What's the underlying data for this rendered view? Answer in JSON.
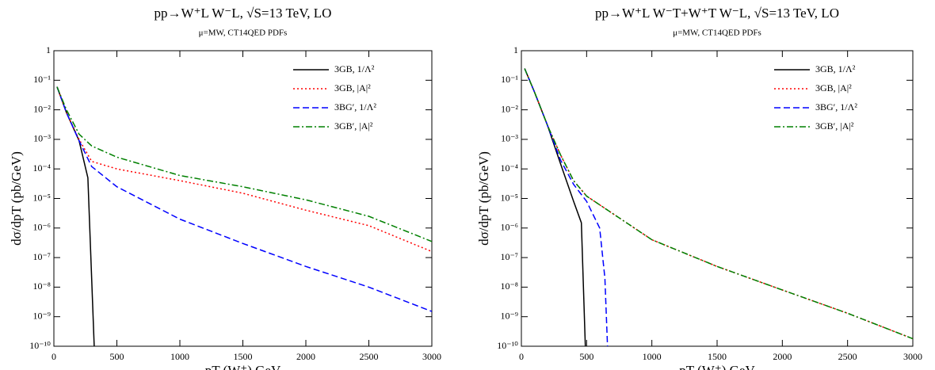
{
  "chart_data": [
    {
      "type": "line",
      "title": "pp→W⁺L W⁻L, √S=13 TeV, LO",
      "subtitle": "μ=MW, CT14QED PDFs",
      "x_label": "pT (W⁺) GeV",
      "y_label": "dσ/dpT (pb/GeV)",
      "xlim": [
        0,
        3000
      ],
      "xticks": [
        0,
        500,
        1000,
        1500,
        2000,
        2500,
        3000
      ],
      "ylim": [
        1e-10,
        1
      ],
      "log_y": true,
      "legend": "upper right",
      "yticks": [
        {
          "value": 1e-10,
          "label": "10⁻¹⁰"
        },
        {
          "value": 1e-09,
          "label": "10⁻⁹"
        },
        {
          "value": 1e-08,
          "label": "10⁻⁸"
        },
        {
          "value": 1e-07,
          "label": "10⁻⁷"
        },
        {
          "value": 1e-06,
          "label": "10⁻⁶"
        },
        {
          "value": 1e-05,
          "label": "10⁻⁵"
        },
        {
          "value": 0.0001,
          "label": "10⁻⁴"
        },
        {
          "value": 0.001,
          "label": "10⁻³"
        },
        {
          "value": 0.01,
          "label": "10⁻²"
        },
        {
          "value": 0.1,
          "label": "10⁻¹"
        },
        1
      ],
      "series": [
        {
          "name": "3GB, 1/Λ²",
          "color": "#000000",
          "dash": "solid",
          "x": [
            25,
            100,
            200,
            270,
            320
          ],
          "values": [
            0.06,
            0.008,
            0.0009,
            5e-05,
            1e-10
          ]
        },
        {
          "name": "3GB, |A|²",
          "color": "#ff0000",
          "dash": "dotted",
          "x": [
            25,
            100,
            200,
            300,
            500,
            1000,
            1500,
            2000,
            2500,
            3000
          ],
          "values": [
            0.06,
            0.008,
            0.001,
            0.00018,
            0.0001,
            4e-05,
            1.5e-05,
            4e-06,
            1.2e-06,
            1.6e-07
          ]
        },
        {
          "name": "3BG′, 1/Λ²",
          "color": "#0000ff",
          "dash": "dashed",
          "x": [
            25,
            100,
            200,
            300,
            500,
            1000,
            1500,
            2000,
            2500,
            3000
          ],
          "values": [
            0.06,
            0.008,
            0.0009,
            0.00012,
            2.5e-05,
            2e-06,
            3e-07,
            5e-08,
            1e-08,
            1.5e-09
          ]
        },
        {
          "name": "3GB′, |A|²",
          "color": "#008000",
          "dash": "dashdot",
          "x": [
            25,
            100,
            200,
            300,
            500,
            1000,
            1500,
            2000,
            2500,
            3000
          ],
          "values": [
            0.06,
            0.01,
            0.0015,
            0.0006,
            0.00025,
            6e-05,
            2.5e-05,
            9e-06,
            2.5e-06,
            3.5e-07
          ]
        }
      ]
    },
    {
      "type": "line",
      "title": "pp→W⁺L W⁻T+W⁺T W⁻L, √S=13 TeV, LO",
      "subtitle": "μ=MW, CT14QED PDFs",
      "x_label": "pT (W⁺) GeV",
      "y_label": "dσ/dpT (pb/GeV)",
      "xlim": [
        0,
        3000
      ],
      "xticks": [
        0,
        500,
        1000,
        1500,
        2000,
        2500,
        3000
      ],
      "ylim": [
        1e-10,
        1
      ],
      "log_y": true,
      "legend": "upper right",
      "yticks": [
        {
          "value": 1e-10,
          "label": "10⁻¹⁰"
        },
        {
          "value": 1e-09,
          "label": "10⁻⁹"
        },
        {
          "value": 1e-08,
          "label": "10⁻⁸"
        },
        {
          "value": 1e-07,
          "label": "10⁻⁷"
        },
        {
          "value": 1e-06,
          "label": "10⁻⁶"
        },
        {
          "value": 1e-05,
          "label": "10⁻⁵"
        },
        {
          "value": 0.0001,
          "label": "10⁻⁴"
        },
        {
          "value": 0.001,
          "label": "10⁻³"
        },
        {
          "value": 0.01,
          "label": "10⁻²"
        },
        {
          "value": 0.1,
          "label": "10⁻¹"
        },
        1
      ],
      "series": [
        {
          "name": "3GB, 1/Λ²",
          "color": "#000000",
          "dash": "solid",
          "x": [
            25,
            100,
            200,
            300,
            400,
            460,
            490
          ],
          "values": [
            0.25,
            0.04,
            0.003,
            0.00015,
            8e-06,
            1.5e-06,
            1e-10
          ]
        },
        {
          "name": "3GB, |A|²",
          "color": "#ff0000",
          "dash": "dotted",
          "x": [
            25,
            100,
            200,
            300,
            400,
            500,
            1000,
            1500,
            2000,
            2500,
            3000
          ],
          "values": [
            0.25,
            0.04,
            0.003,
            0.0003,
            4e-05,
            1.2e-05,
            4e-07,
            5e-08,
            8e-09,
            1.3e-09,
            1.8e-10
          ]
        },
        {
          "name": "3BG′, 1/Λ²",
          "color": "#0000ff",
          "dash": "dashed",
          "x": [
            25,
            100,
            200,
            300,
            400,
            500,
            600,
            640,
            660
          ],
          "values": [
            0.25,
            0.04,
            0.003,
            0.0002,
            3e-05,
            8e-06,
            1e-06,
            2e-08,
            1e-10
          ]
        },
        {
          "name": "3GB′, |A|²",
          "color": "#008000",
          "dash": "dashdot",
          "x": [
            25,
            100,
            200,
            300,
            400,
            500,
            1000,
            1500,
            2000,
            2500,
            3000
          ],
          "values": [
            0.25,
            0.04,
            0.003,
            0.0003,
            4e-05,
            1.2e-05,
            4e-07,
            5e-08,
            8e-09,
            1.3e-09,
            1.8e-10
          ]
        }
      ]
    }
  ]
}
